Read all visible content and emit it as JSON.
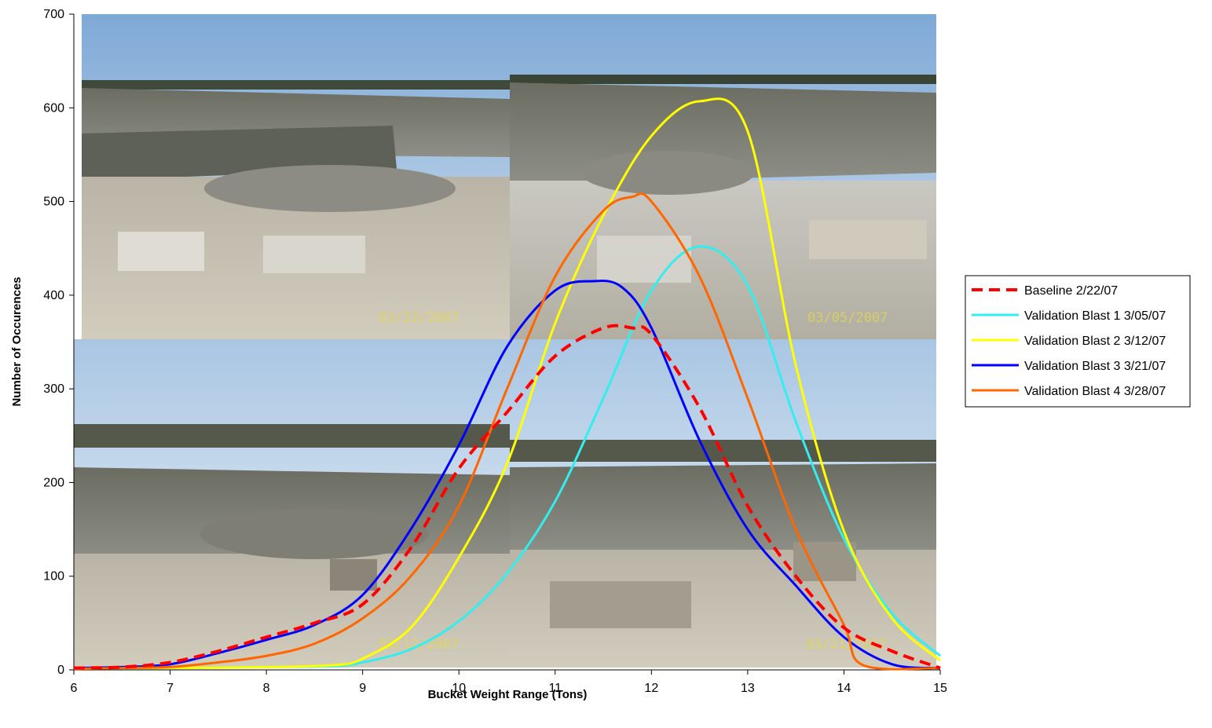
{
  "chart_data": {
    "type": "line",
    "title": "",
    "xlabel": "Bucket Weight Range (Tons)",
    "ylabel": "Number of Occurences",
    "xlim": [
      6,
      15
    ],
    "ylim": [
      0,
      700
    ],
    "xticks": [
      6,
      7,
      8,
      9,
      10,
      11,
      12,
      13,
      14,
      15
    ],
    "yticks": [
      0,
      100,
      200,
      300,
      400,
      500,
      600,
      700
    ],
    "grid": false,
    "legend_position": "right",
    "background_photos": [
      {
        "date_stamp": "02/22/2007"
      },
      {
        "date_stamp": "03/05/2007"
      },
      {
        "date_stamp": "03/12/2007"
      },
      {
        "date_stamp": "03/21/2007"
      }
    ],
    "series": [
      {
        "name": "Baseline 2/22/07",
        "color": "#ff0000",
        "style": "dashed",
        "x": [
          6,
          6.5,
          7,
          7.5,
          8,
          8.5,
          9,
          9.5,
          10,
          10.5,
          11,
          11.5,
          11.8,
          12,
          12.5,
          13,
          13.5,
          14,
          14.5,
          15
        ],
        "y": [
          2,
          3,
          8,
          20,
          35,
          50,
          70,
          130,
          215,
          275,
          335,
          365,
          365,
          358,
          280,
          175,
          100,
          45,
          20,
          2
        ]
      },
      {
        "name": "Validation Blast 1 3/05/07",
        "color": "#33eeee",
        "style": "solid",
        "x": [
          6,
          7,
          8,
          8.7,
          9,
          9.5,
          10,
          10.5,
          11,
          11.5,
          12,
          12.5,
          13,
          13.5,
          14,
          14.5,
          15
        ],
        "y": [
          2,
          2,
          3,
          4,
          8,
          22,
          52,
          103,
          180,
          290,
          405,
          452,
          410,
          265,
          140,
          60,
          15
        ]
      },
      {
        "name": "Validation Blast 2 3/12/07",
        "color": "#ffff00",
        "style": "solid",
        "x": [
          6,
          7,
          8,
          8.7,
          9,
          9.5,
          10,
          10.5,
          11,
          11.5,
          12,
          12.5,
          13,
          13.5,
          14,
          14.5,
          15
        ],
        "y": [
          2,
          2,
          3,
          5,
          12,
          45,
          120,
          220,
          370,
          485,
          570,
          607,
          575,
          325,
          148,
          55,
          10
        ]
      },
      {
        "name": "Validation Blast 3 3/21/07",
        "color": "#0000ff",
        "style": "solid",
        "x": [
          6,
          6.5,
          7,
          7.5,
          8,
          8.5,
          9,
          9.5,
          10,
          10.5,
          11,
          11.4,
          11.7,
          12,
          12.5,
          13,
          13.5,
          14,
          14.5,
          15
        ],
        "y": [
          2,
          3,
          6,
          18,
          32,
          48,
          80,
          150,
          240,
          345,
          405,
          415,
          408,
          365,
          245,
          150,
          90,
          35,
          6,
          2
        ]
      },
      {
        "name": "Validation Blast 4 3/28/07",
        "color": "#ff6600",
        "style": "solid",
        "x": [
          6,
          6.5,
          7,
          7.5,
          8,
          8.5,
          9,
          9.5,
          10,
          10.5,
          11,
          11.5,
          11.8,
          12,
          12.5,
          13,
          13.5,
          14,
          14.2,
          15
        ],
        "y": [
          1,
          2,
          3,
          8,
          15,
          28,
          55,
          100,
          175,
          300,
          420,
          490,
          505,
          500,
          420,
          290,
          150,
          48,
          5,
          2
        ]
      }
    ]
  }
}
